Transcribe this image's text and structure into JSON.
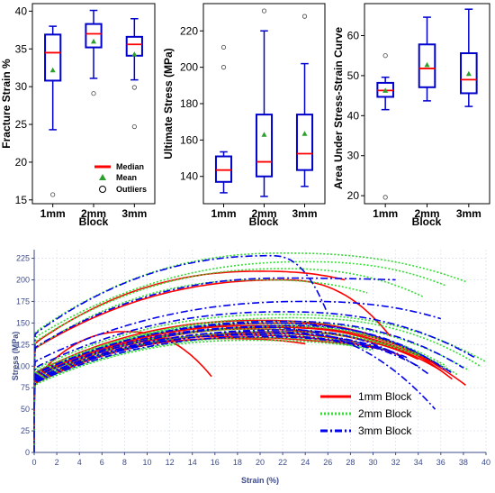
{
  "colors": {
    "box": "#0000cc",
    "median": "#ff0000",
    "mean": "#2ca02c",
    "series_1mm": "#ff0000",
    "series_2mm": "#33dd33",
    "series_3mm": "#0000ee",
    "bottom_axis": "#3d4b8a",
    "grid": "#e0e4ee"
  },
  "chart_data": [
    {
      "type": "box",
      "title": "",
      "xlabel": "Block",
      "ylabel": "Fracture Strain %",
      "categories": [
        "1mm",
        "2mm",
        "3mm"
      ],
      "ylim": [
        14.5,
        41
      ],
      "yticks": [
        15,
        20,
        25,
        30,
        35,
        40
      ],
      "boxes": [
        {
          "category": "1mm",
          "whisker_low": 24.3,
          "q1": 30.8,
          "median": 34.5,
          "q3": 36.9,
          "whisker_high": 38,
          "mean": 32.2,
          "outliers": [
            15.7
          ]
        },
        {
          "category": "2mm",
          "whisker_low": 31.1,
          "q1": 35.2,
          "median": 37,
          "q3": 38.3,
          "whisker_high": 40.1,
          "mean": 36,
          "outliers": [
            29.1
          ]
        },
        {
          "category": "3mm",
          "whisker_low": 30.9,
          "q1": 34.1,
          "median": 35.6,
          "q3": 36.6,
          "whisker_high": 39,
          "mean": 34.3,
          "outliers": [
            29.9,
            24.7
          ]
        }
      ],
      "legend": {
        "position": "lower-right",
        "median": "Median",
        "mean": "Mean",
        "outliers": "Outliers"
      }
    },
    {
      "type": "box",
      "title": "",
      "xlabel": "Block",
      "ylabel": "Ultimate Stress (MPa)",
      "categories": [
        "1mm",
        "2mm",
        "3mm"
      ],
      "ylim": [
        125,
        235
      ],
      "yticks": [
        140,
        160,
        180,
        200,
        220
      ],
      "boxes": [
        {
          "category": "1mm",
          "whisker_low": 131,
          "q1": 137,
          "median": 143.5,
          "q3": 151,
          "whisker_high": 153.5,
          "mean": null,
          "outliers": [
            211,
            200
          ]
        },
        {
          "category": "2mm",
          "whisker_low": 129,
          "q1": 140,
          "median": 148,
          "q3": 174,
          "whisker_high": 220,
          "mean": 163,
          "outliers": [
            231
          ]
        },
        {
          "category": "3mm",
          "whisker_low": 134.5,
          "q1": 143.5,
          "median": 152.5,
          "q3": 174,
          "whisker_high": 202,
          "mean": 163.5,
          "outliers": [
            228
          ]
        }
      ]
    },
    {
      "type": "box",
      "title": "",
      "xlabel": "Block",
      "ylabel": "Area Under Stress-Strain Curve",
      "categories": [
        "1mm",
        "2mm",
        "3mm"
      ],
      "ylim": [
        18,
        68
      ],
      "yticks": [
        20,
        30,
        40,
        50,
        60
      ],
      "boxes": [
        {
          "category": "1mm",
          "whisker_low": 41.5,
          "q1": 44.7,
          "median": 46.3,
          "q3": 48.2,
          "whisker_high": 49.6,
          "mean": 46.3,
          "outliers": [
            55,
            19.6
          ]
        },
        {
          "category": "2mm",
          "whisker_low": 43.7,
          "q1": 47.1,
          "median": 51.8,
          "q3": 57.8,
          "whisker_high": 64.6,
          "mean": 52.7,
          "outliers": []
        },
        {
          "category": "3mm",
          "whisker_low": 42.3,
          "q1": 45.6,
          "median": 49,
          "q3": 55.6,
          "whisker_high": 66.6,
          "mean": 50.5,
          "outliers": []
        }
      ]
    },
    {
      "type": "line",
      "title": "",
      "xlabel": "Strain (%)",
      "ylabel": "Stress (MPa)",
      "xlim": [
        0,
        40
      ],
      "ylim": [
        0,
        235
      ],
      "xticks": [
        0,
        2,
        4,
        6,
        8,
        10,
        12,
        14,
        16,
        18,
        20,
        22,
        24,
        26,
        28,
        30,
        32,
        34,
        36,
        38,
        40
      ],
      "yticks": [
        0,
        25,
        50,
        75,
        100,
        125,
        150,
        175,
        200,
        225
      ],
      "grid": true,
      "legend": {
        "position": "lower-right"
      },
      "series": [
        {
          "name": "1mm Block",
          "curves": [
            {
              "peak": 210,
              "peak_x": 20,
              "end_x": 27.5,
              "end_y": 200
            },
            {
              "peak": 200,
              "peak_x": 22,
              "end_x": 31.5,
              "end_y": 135
            },
            {
              "peak": 153,
              "peak_x": 20,
              "end_x": 38.2,
              "end_y": 78
            },
            {
              "peak": 150,
              "peak_x": 22,
              "end_x": 37,
              "end_y": 85
            },
            {
              "peak": 147,
              "peak_x": 20,
              "end_x": 36,
              "end_y": 95
            },
            {
              "peak": 145,
              "peak_x": 21,
              "end_x": 35,
              "end_y": 105
            },
            {
              "peak": 143,
              "peak_x": 19,
              "end_x": 33,
              "end_y": 115
            },
            {
              "peak": 140,
              "peak_x": 22,
              "end_x": 34,
              "end_y": 108
            },
            {
              "peak": 138,
              "peak_x": 20,
              "end_x": 32.5,
              "end_y": 112
            },
            {
              "peak": 136,
              "peak_x": 18,
              "end_x": 30.5,
              "end_y": 120
            },
            {
              "peak": 134,
              "peak_x": 15,
              "end_x": 28,
              "end_y": 125
            },
            {
              "peak": 132,
              "peak_x": 17,
              "end_x": 24,
              "end_y": 126
            },
            {
              "peak": 140,
              "peak_x": 8,
              "end_x": 15.7,
              "end_y": 88
            },
            {
              "peak": 145,
              "peak_x": 22,
              "end_x": 36,
              "end_y": 100
            }
          ]
        },
        {
          "name": "2mm Block",
          "curves": [
            {
              "peak": 231,
              "peak_x": 22,
              "end_x": 38.2,
              "end_y": 198
            },
            {
              "peak": 221,
              "peak_x": 24,
              "end_x": 36.5,
              "end_y": 193
            },
            {
              "peak": 213,
              "peak_x": 22,
              "end_x": 34.5,
              "end_y": 180
            },
            {
              "peak": 200,
              "peak_x": 20,
              "end_x": 29.5,
              "end_y": 185
            },
            {
              "peak": 160,
              "peak_x": 22,
              "end_x": 40,
              "end_y": 105
            },
            {
              "peak": 156,
              "peak_x": 23,
              "end_x": 39.5,
              "end_y": 100
            },
            {
              "peak": 152,
              "peak_x": 21,
              "end_x": 38.5,
              "end_y": 95
            },
            {
              "peak": 149,
              "peak_x": 20,
              "end_x": 37.5,
              "end_y": 90
            },
            {
              "peak": 146,
              "peak_x": 22,
              "end_x": 36.5,
              "end_y": 100
            },
            {
              "peak": 143,
              "peak_x": 20,
              "end_x": 35,
              "end_y": 108
            },
            {
              "peak": 140,
              "peak_x": 21,
              "end_x": 34,
              "end_y": 112
            },
            {
              "peak": 137,
              "peak_x": 19,
              "end_x": 31.5,
              "end_y": 118
            },
            {
              "peak": 133,
              "peak_x": 20,
              "end_x": 30,
              "end_y": 118
            },
            {
              "peak": 130,
              "peak_x": 19,
              "end_x": 29,
              "end_y": 122
            }
          ]
        },
        {
          "name": "3mm Block",
          "curves": [
            {
              "peak": 228,
              "peak_x": 21,
              "end_x": 26,
              "end_y": 160
            },
            {
              "peak": 202,
              "peak_x": 22,
              "end_x": 32,
              "end_y": 200
            },
            {
              "peak": 175,
              "peak_x": 24,
              "end_x": 36,
              "end_y": 155
            },
            {
              "peak": 163,
              "peak_x": 22,
              "end_x": 39,
              "end_y": 110
            },
            {
              "peak": 152,
              "peak_x": 22,
              "end_x": 38,
              "end_y": 98
            },
            {
              "peak": 150,
              "peak_x": 21,
              "end_x": 37,
              "end_y": 92
            },
            {
              "peak": 147,
              "peak_x": 23,
              "end_x": 36.5,
              "end_y": 95
            },
            {
              "peak": 145,
              "peak_x": 20,
              "end_x": 35.5,
              "end_y": 50
            },
            {
              "peak": 142,
              "peak_x": 22,
              "end_x": 35,
              "end_y": 90
            },
            {
              "peak": 140,
              "peak_x": 20,
              "end_x": 34,
              "end_y": 100
            },
            {
              "peak": 138,
              "peak_x": 21,
              "end_x": 33,
              "end_y": 110
            },
            {
              "peak": 136,
              "peak_x": 19,
              "end_x": 32,
              "end_y": 115
            },
            {
              "peak": 134,
              "peak_x": 20,
              "end_x": 30,
              "end_y": 120
            }
          ]
        }
      ]
    }
  ]
}
